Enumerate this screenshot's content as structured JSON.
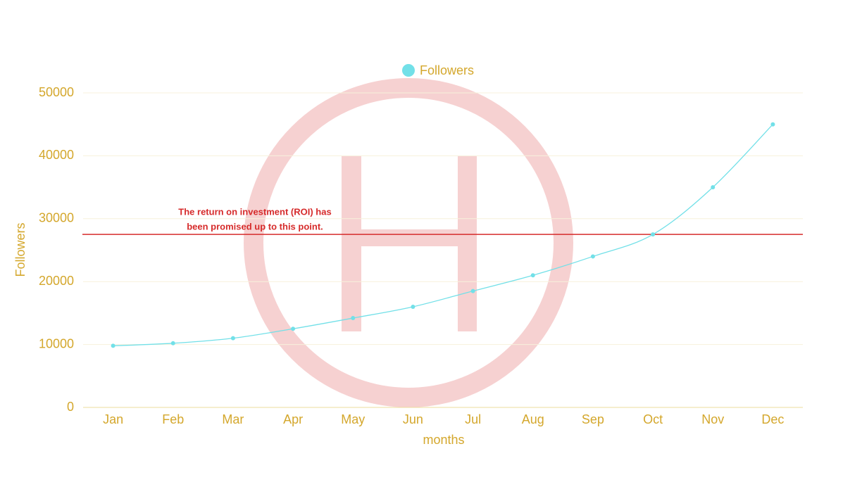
{
  "chart_data": {
    "type": "line",
    "categories": [
      "Jan",
      "Feb",
      "Mar",
      "Apr",
      "May",
      "Jun",
      "Jul",
      "Aug",
      "Sep",
      "Oct",
      "Nov",
      "Dec"
    ],
    "series": [
      {
        "name": "Followers",
        "color": "#72e0e8",
        "values": [
          9800,
          10200,
          11000,
          12500,
          14200,
          16000,
          18500,
          21000,
          24000,
          27500,
          35000,
          45000
        ]
      }
    ],
    "ylim": [
      0,
      50000
    ],
    "yticks": [
      0,
      10000,
      20000,
      30000,
      40000,
      50000
    ],
    "x_label": "months",
    "y_label": "Followers",
    "grid": true,
    "legend": "top",
    "annotation": {
      "lines": [
        "The return on investment (ROI) has",
        "been promised up to this point."
      ],
      "value": 27500,
      "color": "#d62b2b"
    }
  }
}
